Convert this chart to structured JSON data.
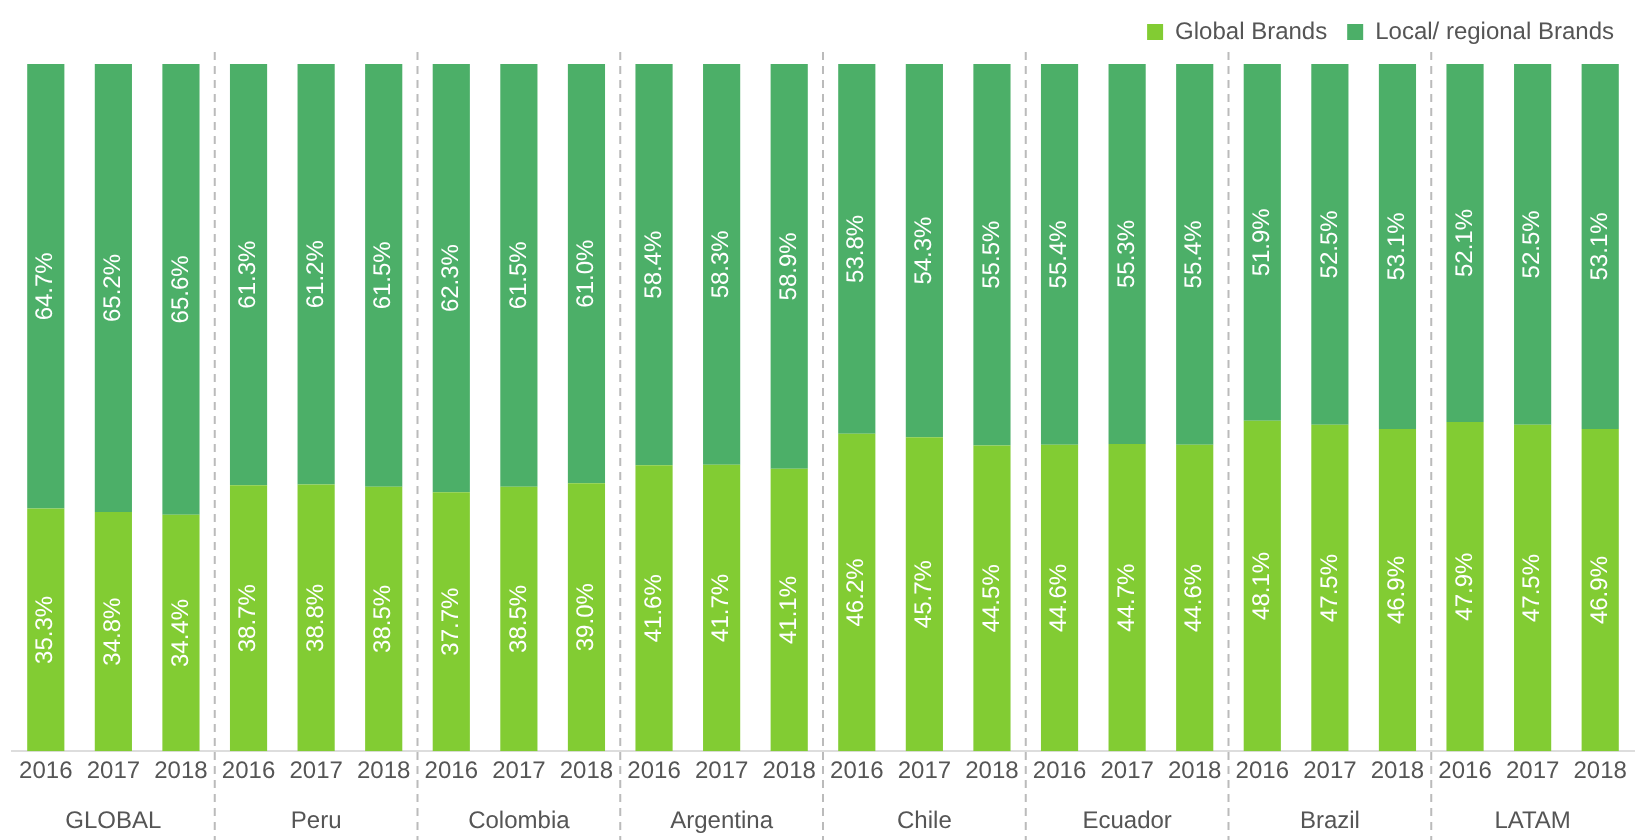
{
  "chart_data": {
    "type": "bar",
    "stacked": true,
    "categories": [
      "2016",
      "2017",
      "2018",
      "2016",
      "2017",
      "2018",
      "2016",
      "2017",
      "2018",
      "2016",
      "2017",
      "2018",
      "2016",
      "2017",
      "2018",
      "2016",
      "2017",
      "2018",
      "2016",
      "2017",
      "2018",
      "2016",
      "2017",
      "2018"
    ],
    "annotations": [
      "GLOBAL",
      "Peru",
      "Colombia",
      "Argentina",
      "Chile",
      "Ecuador",
      "Brazil",
      "LATAM"
    ],
    "series": [
      {
        "name": "Global Brands",
        "color": "#82cc33",
        "values": [
          35.3,
          34.8,
          34.4,
          38.7,
          38.8,
          38.5,
          37.7,
          38.5,
          39.0,
          41.6,
          41.7,
          41.1,
          46.2,
          45.7,
          44.5,
          44.6,
          44.7,
          44.6,
          48.1,
          47.5,
          46.9,
          47.9,
          47.5,
          46.9
        ],
        "value_labels": [
          "35.3%",
          "34.8%",
          "34.4%",
          "38.7%",
          "38.8%",
          "38.5%",
          "37.7%",
          "38.5%",
          "39.0%",
          "41.6%",
          "41.7%",
          "41.1%",
          "46.2%",
          "45.7%",
          "44.5%",
          "44.6%",
          "44.7%",
          "44.6%",
          "48.1%",
          "47.5%",
          "46.9%",
          "47.9%",
          "47.5%",
          "46.9%"
        ]
      },
      {
        "name": "Local/ regional Brands",
        "color": "#4caf68",
        "values": [
          64.7,
          65.2,
          65.6,
          61.3,
          61.2,
          61.5,
          62.3,
          61.5,
          61.0,
          58.4,
          58.3,
          58.9,
          53.8,
          54.3,
          55.5,
          55.4,
          55.3,
          55.4,
          51.9,
          52.5,
          53.1,
          52.1,
          52.5,
          53.1
        ],
        "value_labels": [
          "64.7%",
          "65.2%",
          "65.6%",
          "61.3%",
          "61.2%",
          "61.5%",
          "62.3%",
          "61.5%",
          "61.0%",
          "58.4%",
          "58.3%",
          "58.9%",
          "53.8%",
          "54.3%",
          "55.5%",
          "55.4%",
          "55.3%",
          "55.4%",
          "51.9%",
          "52.5%",
          "53.1%",
          "52.1%",
          "52.5%",
          "53.1%"
        ]
      }
    ],
    "ylim": [
      0,
      100
    ],
    "tick_labels": "x",
    "grid": false,
    "legend": "top right"
  }
}
